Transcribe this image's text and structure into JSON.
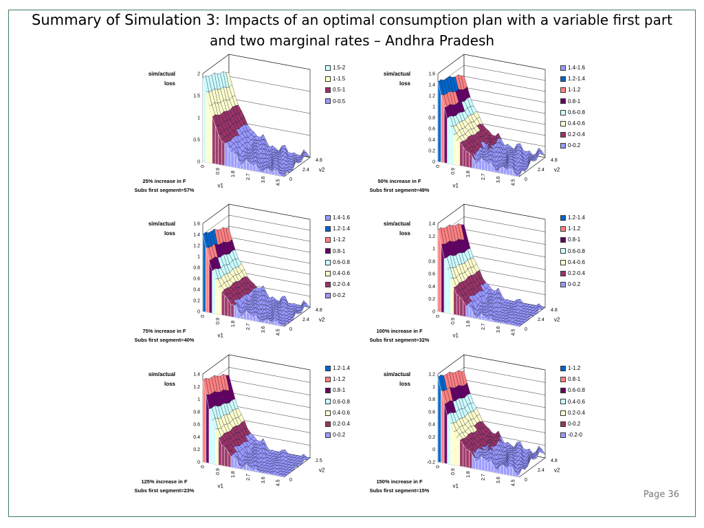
{
  "slide": {
    "title_lead": "Summary of Simulation 3: ",
    "title_rest": "Impacts of an optimal consumption plan with a variable first part and two marginal rates – Andhra Pradesh",
    "page_number": "Page 36"
  },
  "chart_data": [
    {
      "type": "surface3d",
      "zlabel_1": "sim/actual",
      "zlabel_2": "loss",
      "xlabel": "v1",
      "ylabel": "v2",
      "z_ticks": [
        "2",
        "1.5",
        "1",
        "0.5",
        "0"
      ],
      "zlim": [
        0,
        2
      ],
      "x_ticks": [
        "0",
        "0.9",
        "1.8",
        "2.7",
        "3.6",
        "4.5"
      ],
      "y_ticks": [
        "0",
        "2.4",
        "4.8"
      ],
      "legend": [
        "1.5-2",
        "1-1.5",
        "0.5-1",
        "0-0.5"
      ],
      "legend_colors": [
        "#ccffff",
        "#ffffcc",
        "#993366",
        "#9999ff"
      ],
      "caption_1": "25% increase in F",
      "caption_2": "Subs first segment=57%",
      "peak": 1.9,
      "floor": 0.02
    },
    {
      "type": "surface3d",
      "zlabel_1": "sim/actual",
      "zlabel_2": "loss",
      "xlabel": "v1",
      "ylabel": "v2",
      "z_ticks": [
        "1.6",
        "1.4",
        "1.2",
        "1",
        "0.8",
        "0.6",
        "0.4",
        "0.2",
        "0"
      ],
      "zlim": [
        0,
        1.6
      ],
      "x_ticks": [
        "0",
        "0.9",
        "1.8",
        "2.7",
        "3.6",
        "4.5"
      ],
      "y_ticks": [
        "0",
        "2.4",
        "4.8"
      ],
      "legend": [
        "1.4-1.6",
        "1.2-1.4",
        "1-1.2",
        "0.8-1",
        "0.6-0.8",
        "0.4-0.6",
        "0.2-0.4",
        "0-0.2"
      ],
      "legend_colors": [
        "#9999ff",
        "#0066cc",
        "#ff8080",
        "#660066",
        "#ccffff",
        "#ffffcc",
        "#993366",
        "#9999ff"
      ],
      "caption_1": "50% increase in F",
      "caption_2": "Subs first segment=49%",
      "peak": 1.45,
      "floor": 0.05
    },
    {
      "type": "surface3d",
      "zlabel_1": "sim/actual",
      "zlabel_2": "loss",
      "xlabel": "v1",
      "ylabel": "v2",
      "z_ticks": [
        "1.6",
        "1.4",
        "1.2",
        "1",
        "0.8",
        "0.6",
        "0.4",
        "0.2",
        "0"
      ],
      "zlim": [
        0,
        1.6
      ],
      "x_ticks": [
        "0",
        "0.9",
        "1.8",
        "2.7",
        "3.6",
        "4.5"
      ],
      "y_ticks": [
        "0",
        "2.4",
        "4.8"
      ],
      "legend": [
        "1.4-1.6",
        "1.2-1.4",
        "1-1.2",
        "0.8-1",
        "0.6-0.8",
        "0.4-0.6",
        "0.2-0.4",
        "0-0.2"
      ],
      "legend_colors": [
        "#9999ff",
        "#0066cc",
        "#ff8080",
        "#660066",
        "#ccffff",
        "#ffffcc",
        "#993366",
        "#9999ff"
      ],
      "caption_1": "75% increase in F",
      "caption_2": "Subs first segment=40%",
      "peak": 1.4,
      "floor": 0.0
    },
    {
      "type": "surface3d",
      "zlabel_1": "sim/actual",
      "zlabel_2": "loss",
      "xlabel": "v1",
      "ylabel": "v2",
      "z_ticks": [
        "1.4",
        "1.2",
        "1",
        "0.8",
        "0.6",
        "0.4",
        "0.2",
        "0"
      ],
      "zlim": [
        0,
        1.4
      ],
      "x_ticks": [
        "0",
        "0.9",
        "1.8",
        "2.7",
        "3.6",
        "4.5"
      ],
      "y_ticks": [
        "0",
        "2.4",
        "4.8"
      ],
      "legend": [
        "1.2-1.4",
        "1-1.2",
        "0.8-1",
        "0.6-0.8",
        "0.4-0.6",
        "0.2-0.4",
        "0-0.2"
      ],
      "legend_colors": [
        "#0066cc",
        "#ff8080",
        "#660066",
        "#ccffff",
        "#ffffcc",
        "#993366",
        "#9999ff"
      ],
      "caption_1": "100% increase in F",
      "caption_2": "Subs first segment=32%",
      "peak": 1.3,
      "floor": -0.05
    },
    {
      "type": "surface3d",
      "zlabel_1": "sim/actual",
      "zlabel_2": "loss",
      "xlabel": "v1",
      "ylabel": "v2",
      "z_ticks": [
        "1.4",
        "1.2",
        "1",
        "0.8",
        "0.6",
        "0.4",
        "0.2",
        "0"
      ],
      "zlim": [
        0,
        1.4
      ],
      "x_ticks": [
        "0",
        "0.9",
        "1.8",
        "2.7",
        "3.6",
        "4.5"
      ],
      "y_ticks": [
        "0",
        "2.5"
      ],
      "legend": [
        "1.2-1.4",
        "1-1.2",
        "0.8-1",
        "0.6-0.8",
        "0.4-0.6",
        "0.2-0.4",
        "0-0.2"
      ],
      "legend_colors": [
        "#0066cc",
        "#ff8080",
        "#660066",
        "#ccffff",
        "#ffffcc",
        "#993366",
        "#9999ff"
      ],
      "caption_1": "125% increase in F",
      "caption_2": "Subs first segment=23%",
      "peak": 1.3,
      "floor": -0.05
    },
    {
      "type": "surface3d",
      "zlabel_1": "sim/actual",
      "zlabel_2": "loss",
      "xlabel": "v1",
      "ylabel": "v2",
      "z_ticks": [
        "1.2",
        "1",
        "0.8",
        "0.6",
        "0.4",
        "0.2",
        "0",
        "-0.2"
      ],
      "zlim": [
        -0.2,
        1.2
      ],
      "x_ticks": [
        "0",
        "0.9",
        "1.8",
        "2.7",
        "3.6",
        "4.5"
      ],
      "y_ticks": [
        "0",
        "2.4",
        "4.8"
      ],
      "legend": [
        "1-1.2",
        "0.8-1",
        "0.6-0.8",
        "0.4-0.6",
        "0.2-0.4",
        "0-0.2",
        "-0.2-0"
      ],
      "legend_colors": [
        "#0066cc",
        "#ff8080",
        "#660066",
        "#ccffff",
        "#ffffcc",
        "#993366",
        "#9999ff"
      ],
      "caption_1": "150% increase in F",
      "caption_2": "Subs first segment=15%",
      "peak": 1.15,
      "floor": -0.12
    }
  ]
}
